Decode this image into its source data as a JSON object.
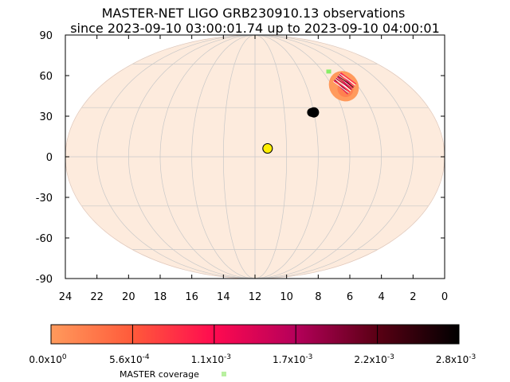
{
  "chart_data": {
    "type": "scatter",
    "projection": "mollweide",
    "title_line1": "MASTER-NET LIGO GRB230910.13 observations",
    "title_line2": "since 2023-09-10 03:00:01.74 up to 2023-09-10 04:00:01",
    "xlabel": "",
    "ylabel": "",
    "x_reversed": true,
    "xlim": [
      24,
      0
    ],
    "ylim": [
      -90,
      90
    ],
    "x_ticks": [
      "24",
      "22",
      "20",
      "18",
      "16",
      "14",
      "12",
      "10",
      "8",
      "6",
      "4",
      "2",
      "0"
    ],
    "y_ticks": [
      "90",
      "60",
      "30",
      "0",
      "-30",
      "-60",
      "-90"
    ],
    "grid": true,
    "sky_background_color": "#fdebdd",
    "markers": [
      {
        "kind": "sun",
        "ra": 11.2,
        "dec": 5,
        "color": "#ffee00"
      },
      {
        "kind": "moon",
        "ra": 8.0,
        "dec": 27,
        "color": "#000000"
      }
    ],
    "probability_region": {
      "center_ra": 5.1,
      "center_dec": 44,
      "extent_ra": 2.2,
      "extent_dec": 19,
      "color": "#ff9a5c",
      "peak_ra": 4.9,
      "peak_dec": 46
    },
    "coverage_point": {
      "ra": 5.5,
      "dec": 54,
      "color": "#88ee66"
    },
    "colorbar": {
      "colors": [
        "#ff9a5c",
        "#ff5a3a",
        "#ff0a50",
        "#b5005a",
        "#5a0014",
        "#000000"
      ],
      "tick_labels": [
        {
          "mantissa": "0.0x10",
          "exp": "0"
        },
        {
          "mantissa": "5.6x10",
          "exp": "-4"
        },
        {
          "mantissa": "1.1x10",
          "exp": "-3"
        },
        {
          "mantissa": "1.7x10",
          "exp": "-3"
        },
        {
          "mantissa": "2.2x10",
          "exp": "-3"
        },
        {
          "mantissa": "2.8x10",
          "exp": "-3"
        }
      ]
    },
    "legend": {
      "label": "MASTER coverage",
      "color": "#b8f0a0"
    }
  }
}
